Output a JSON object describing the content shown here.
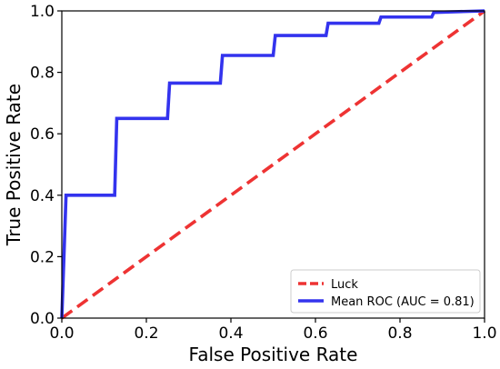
{
  "chart_data": {
    "type": "line",
    "xlabel": "False Positive Rate",
    "ylabel": "True Positive Rate",
    "xlim": [
      0.0,
      1.0
    ],
    "ylim": [
      0.0,
      1.0
    ],
    "grid": false,
    "legend_position": "bottom-right",
    "x_ticks": [
      "0.0",
      "0.2",
      "0.4",
      "0.6",
      "0.8",
      "1.0"
    ],
    "y_ticks": [
      "0.0",
      "0.2",
      "0.4",
      "0.6",
      "0.8",
      "1.0"
    ],
    "series": [
      {
        "name": "Luck",
        "style": "dashed",
        "color": "#ee3333",
        "x": [
          0.0,
          1.0
        ],
        "y": [
          0.0,
          1.0
        ]
      },
      {
        "name": "Mean ROC (AUC = 0.81)",
        "style": "solid",
        "color": "#3333ee",
        "x": [
          0.0,
          0.01,
          0.125,
          0.13,
          0.25,
          0.255,
          0.375,
          0.38,
          0.5,
          0.505,
          0.625,
          0.63,
          0.75,
          0.755,
          0.875,
          0.88,
          1.0
        ],
        "y": [
          0.0,
          0.4,
          0.4,
          0.65,
          0.65,
          0.765,
          0.765,
          0.855,
          0.855,
          0.92,
          0.92,
          0.96,
          0.96,
          0.98,
          0.98,
          0.995,
          1.0
        ]
      }
    ]
  }
}
